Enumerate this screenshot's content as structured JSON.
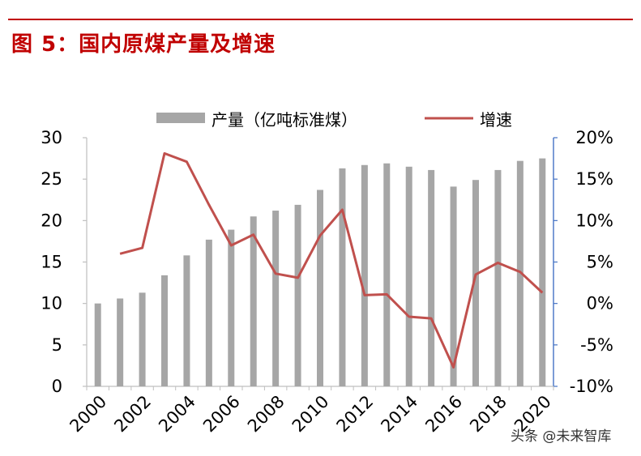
{
  "title": "图 5：国内原煤产量及增速",
  "watermark": {
    "text": "头条 @未来智库"
  },
  "colors": {
    "title": "#c00000",
    "bar": "#a6a6a6",
    "line": "#c0504d",
    "right_axis": "#4472c4",
    "left_axis": "#bfbfbf"
  },
  "chart_data": {
    "type": "bar",
    "x": [
      2000,
      2001,
      2002,
      2003,
      2004,
      2005,
      2006,
      2007,
      2008,
      2009,
      2010,
      2011,
      2012,
      2013,
      2014,
      2015,
      2016,
      2017,
      2018,
      2019,
      2020
    ],
    "x_tick_labels": [
      "2000",
      "2002",
      "2004",
      "2006",
      "2008",
      "2010",
      "2012",
      "2014",
      "2016",
      "2018",
      "2020"
    ],
    "series": [
      {
        "name": "产量（亿吨标准煤）",
        "type": "bar",
        "axis": "left",
        "values": [
          10.0,
          10.6,
          11.3,
          13.4,
          15.8,
          17.7,
          18.9,
          20.5,
          21.2,
          21.9,
          23.7,
          26.3,
          26.7,
          26.9,
          26.5,
          26.1,
          24.1,
          24.9,
          26.1,
          27.2,
          27.5
        ]
      },
      {
        "name": "增速",
        "type": "line",
        "axis": "right",
        "values": [
          null,
          6.0,
          6.7,
          18.1,
          17.1,
          11.9,
          7.0,
          8.3,
          3.6,
          3.1,
          8.2,
          11.3,
          1.0,
          1.1,
          -1.6,
          -1.8,
          -7.7,
          3.5,
          4.9,
          3.8,
          1.3
        ]
      }
    ],
    "y_left": {
      "lim": [
        0,
        30
      ],
      "ticks": [
        "0",
        "5",
        "10",
        "15",
        "20",
        "25",
        "30"
      ]
    },
    "y_right": {
      "lim": [
        -10,
        20
      ],
      "ticks": [
        "-10%",
        "-5%",
        "0%",
        "5%",
        "10%",
        "15%",
        "20%"
      ]
    },
    "legend": "top-center",
    "grid": false
  }
}
